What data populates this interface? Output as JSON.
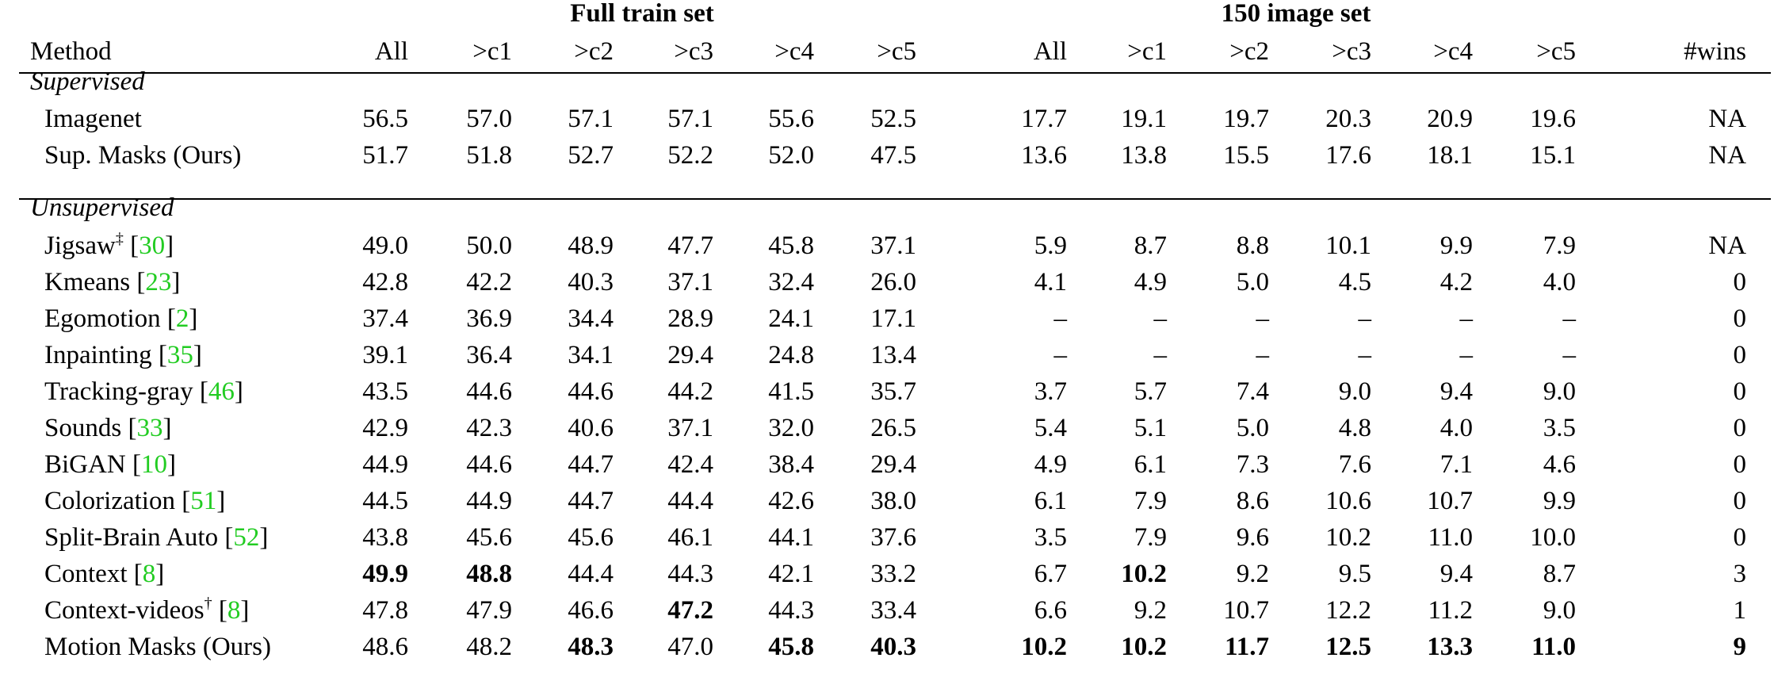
{
  "group_headers": {
    "full_train": "Full train set",
    "small_set": "150 image set"
  },
  "columns": {
    "method": "Method",
    "full": [
      "All",
      ">c1",
      ">c2",
      ">c3",
      ">c4",
      ">c5"
    ],
    "small": [
      "All",
      ">c1",
      ">c2",
      ">c3",
      ">c4",
      ">c5"
    ],
    "wins": "#wins"
  },
  "sections": [
    {
      "title": "Supervised",
      "rows": [
        {
          "name": "Imagenet",
          "full": [
            "56.5",
            "57.0",
            "57.1",
            "57.1",
            "55.6",
            "52.5"
          ],
          "small": [
            "17.7",
            "19.1",
            "19.7",
            "20.3",
            "20.9",
            "19.6"
          ],
          "wins": "NA",
          "bold_full": [],
          "bold_small": [],
          "bold_wins": false
        },
        {
          "name": "Sup. Masks (Ours)",
          "full": [
            "51.7",
            "51.8",
            "52.7",
            "52.2",
            "52.0",
            "47.5"
          ],
          "small": [
            "13.6",
            "13.8",
            "15.5",
            "17.6",
            "18.1",
            "15.1"
          ],
          "wins": "NA",
          "bold_full": [],
          "bold_small": [],
          "bold_wins": false
        }
      ]
    },
    {
      "title": "Unsupervised",
      "rows": [
        {
          "name": "Jigsaw",
          "sup": "‡",
          "cite": "30",
          "full": [
            "49.0",
            "50.0",
            "48.9",
            "47.7",
            "45.8",
            "37.1"
          ],
          "small": [
            "5.9",
            "8.7",
            "8.8",
            "10.1",
            "9.9",
            "7.9"
          ],
          "wins": "NA",
          "bold_full": [],
          "bold_small": [],
          "bold_wins": false
        },
        {
          "name": "Kmeans",
          "cite": "23",
          "full": [
            "42.8",
            "42.2",
            "40.3",
            "37.1",
            "32.4",
            "26.0"
          ],
          "small": [
            "4.1",
            "4.9",
            "5.0",
            "4.5",
            "4.2",
            "4.0"
          ],
          "wins": "0",
          "bold_full": [],
          "bold_small": [],
          "bold_wins": false
        },
        {
          "name": "Egomotion",
          "cite": "2",
          "full": [
            "37.4",
            "36.9",
            "34.4",
            "28.9",
            "24.1",
            "17.1"
          ],
          "small": [
            "–",
            "–",
            "–",
            "–",
            "–",
            "–"
          ],
          "wins": "0",
          "bold_full": [],
          "bold_small": [],
          "bold_wins": false
        },
        {
          "name": "Inpainting",
          "cite": "35",
          "full": [
            "39.1",
            "36.4",
            "34.1",
            "29.4",
            "24.8",
            "13.4"
          ],
          "small": [
            "–",
            "–",
            "–",
            "–",
            "–",
            "–"
          ],
          "wins": "0",
          "bold_full": [],
          "bold_small": [],
          "bold_wins": false
        },
        {
          "name": "Tracking-gray",
          "cite": "46",
          "full": [
            "43.5",
            "44.6",
            "44.6",
            "44.2",
            "41.5",
            "35.7"
          ],
          "small": [
            "3.7",
            "5.7",
            "7.4",
            "9.0",
            "9.4",
            "9.0"
          ],
          "wins": "0",
          "bold_full": [],
          "bold_small": [],
          "bold_wins": false
        },
        {
          "name": "Sounds",
          "cite": "33",
          "full": [
            "42.9",
            "42.3",
            "40.6",
            "37.1",
            "32.0",
            "26.5"
          ],
          "small": [
            "5.4",
            "5.1",
            "5.0",
            "4.8",
            "4.0",
            "3.5"
          ],
          "wins": "0",
          "bold_full": [],
          "bold_small": [],
          "bold_wins": false
        },
        {
          "name": "BiGAN",
          "cite": "10",
          "full": [
            "44.9",
            "44.6",
            "44.7",
            "42.4",
            "38.4",
            "29.4"
          ],
          "small": [
            "4.9",
            "6.1",
            "7.3",
            "7.6",
            "7.1",
            "4.6"
          ],
          "wins": "0",
          "bold_full": [],
          "bold_small": [],
          "bold_wins": false
        },
        {
          "name": "Colorization",
          "cite": "51",
          "full": [
            "44.5",
            "44.9",
            "44.7",
            "44.4",
            "42.6",
            "38.0"
          ],
          "small": [
            "6.1",
            "7.9",
            "8.6",
            "10.6",
            "10.7",
            "9.9"
          ],
          "wins": "0",
          "bold_full": [],
          "bold_small": [],
          "bold_wins": false
        },
        {
          "name": "Split-Brain Auto",
          "cite": "52",
          "full": [
            "43.8",
            "45.6",
            "45.6",
            "46.1",
            "44.1",
            "37.6"
          ],
          "small": [
            "3.5",
            "7.9",
            "9.6",
            "10.2",
            "11.0",
            "10.0"
          ],
          "wins": "0",
          "bold_full": [],
          "bold_small": [],
          "bold_wins": false
        },
        {
          "name": "Context",
          "cite": "8",
          "full": [
            "49.9",
            "48.8",
            "44.4",
            "44.3",
            "42.1",
            "33.2"
          ],
          "small": [
            "6.7",
            "10.2",
            "9.2",
            "9.5",
            "9.4",
            "8.7"
          ],
          "wins": "3",
          "bold_full": [
            0,
            1
          ],
          "bold_small": [
            1
          ],
          "bold_wins": false
        },
        {
          "name": "Context-videos",
          "sup": "†",
          "cite": "8",
          "full": [
            "47.8",
            "47.9",
            "46.6",
            "47.2",
            "44.3",
            "33.4"
          ],
          "small": [
            "6.6",
            "9.2",
            "10.7",
            "12.2",
            "11.2",
            "9.0"
          ],
          "wins": "1",
          "bold_full": [
            3
          ],
          "bold_small": [],
          "bold_wins": false
        },
        {
          "name": "Motion Masks (Ours)",
          "full": [
            "48.6",
            "48.2",
            "48.3",
            "47.0",
            "45.8",
            "40.3"
          ],
          "small": [
            "10.2",
            "10.2",
            "11.7",
            "12.5",
            "13.3",
            "11.0"
          ],
          "wins": "9",
          "bold_full": [
            2,
            4,
            5
          ],
          "bold_small": [
            0,
            1,
            2,
            3,
            4,
            5
          ],
          "bold_wins": true
        }
      ]
    }
  ]
}
